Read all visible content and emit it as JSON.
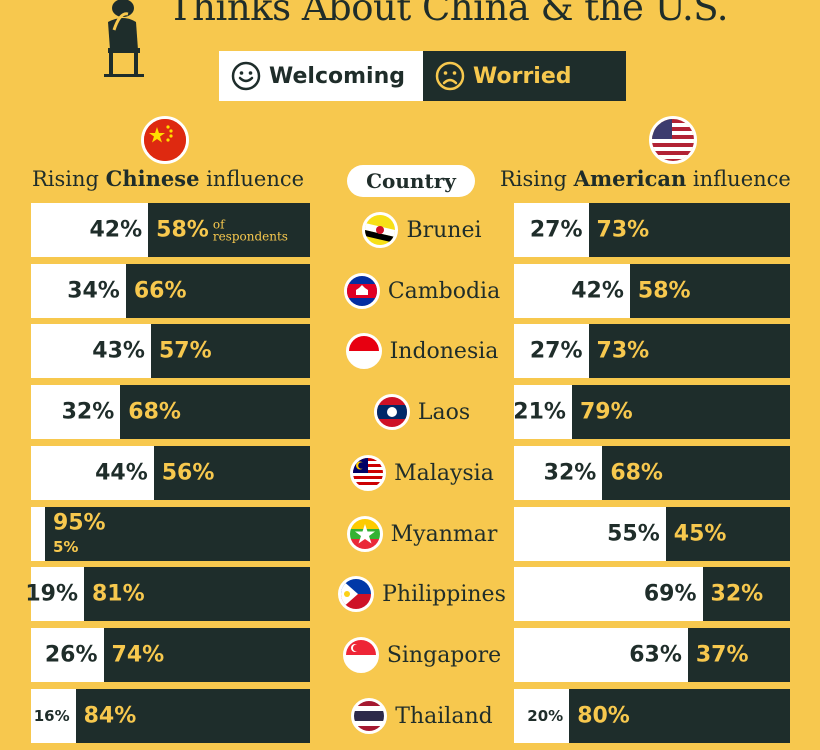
{
  "title": "Thinks About China & the U.S.",
  "legend": {
    "welcoming_label": "Welcoming",
    "worried_label": "Worried",
    "welcoming_icon": "smiley-face-icon",
    "worried_icon": "sad-face-icon"
  },
  "colors": {
    "background": "#f7c84e",
    "welcoming": "#ffffff",
    "worried": "#1e2d2b",
    "worried_text": "#f7c84e"
  },
  "headers": {
    "china_prefix": "Rising ",
    "china_bold": "Chinese",
    "china_suffix": " influence",
    "us_prefix": "Rising ",
    "us_bold": "American",
    "us_suffix": " influence",
    "country": "Country"
  },
  "respondents_note_1": "of",
  "respondents_note_2": "respondents",
  "chart_data": [
    {
      "type": "bar",
      "orientation": "horizontal",
      "stacked": true,
      "title": "Rising Chinese influence",
      "categories": [
        "Brunei",
        "Cambodia",
        "Indonesia",
        "Laos",
        "Malaysia",
        "Myanmar",
        "Philippines",
        "Singapore",
        "Thailand"
      ],
      "series": [
        {
          "name": "Welcoming",
          "values": [
            42,
            34,
            43,
            32,
            44,
            5,
            19,
            26,
            16
          ],
          "labels": [
            "42%",
            "34%",
            "43%",
            "32%",
            "44%",
            "5%",
            "19%",
            "26%",
            "16%"
          ]
        },
        {
          "name": "Worried",
          "values": [
            58,
            66,
            57,
            68,
            56,
            95,
            81,
            74,
            84
          ],
          "labels": [
            "58%",
            "66%",
            "57%",
            "68%",
            "56%",
            "95%",
            "81%",
            "74%",
            "84%"
          ]
        }
      ],
      "xlim": [
        0,
        100
      ]
    },
    {
      "type": "bar",
      "orientation": "horizontal",
      "stacked": true,
      "title": "Rising American influence",
      "categories": [
        "Brunei",
        "Cambodia",
        "Indonesia",
        "Laos",
        "Malaysia",
        "Myanmar",
        "Philippines",
        "Singapore",
        "Thailand"
      ],
      "series": [
        {
          "name": "Welcoming",
          "values": [
            27,
            42,
            27,
            21,
            32,
            55,
            69,
            63,
            20
          ],
          "labels": [
            "27%",
            "42%",
            "27%",
            "21%",
            "32%",
            "55%",
            "69%",
            "63%",
            "20%"
          ]
        },
        {
          "name": "Worried",
          "values": [
            73,
            58,
            73,
            79,
            68,
            45,
            32,
            37,
            80
          ],
          "labels": [
            "73%",
            "58%",
            "73%",
            "79%",
            "68%",
            "45%",
            "32%",
            "37%",
            "80%"
          ]
        }
      ],
      "xlim": [
        0,
        100
      ]
    }
  ],
  "countries": [
    {
      "name": "Brunei",
      "flag": "brunei-flag-icon"
    },
    {
      "name": "Cambodia",
      "flag": "cambodia-flag-icon"
    },
    {
      "name": "Indonesia",
      "flag": "indonesia-flag-icon"
    },
    {
      "name": "Laos",
      "flag": "laos-flag-icon"
    },
    {
      "name": "Malaysia",
      "flag": "malaysia-flag-icon"
    },
    {
      "name": "Myanmar",
      "flag": "myanmar-flag-icon"
    },
    {
      "name": "Philippines",
      "flag": "philippines-flag-icon"
    },
    {
      "name": "Singapore",
      "flag": "singapore-flag-icon"
    },
    {
      "name": "Thailand",
      "flag": "thailand-flag-icon"
    }
  ]
}
